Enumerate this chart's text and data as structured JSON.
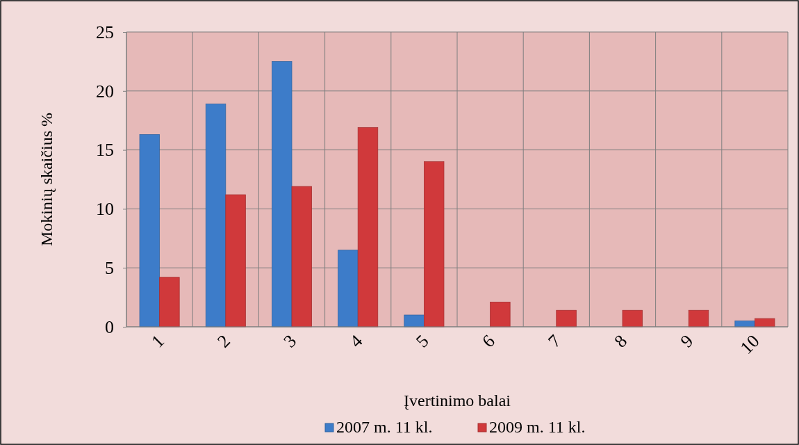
{
  "chart_data": {
    "type": "bar",
    "xlabel": "Įvertinimo balai",
    "ylabel": "Mokinių skaičius %",
    "categories": [
      "1",
      "2",
      "3",
      "4",
      "5",
      "6",
      "7",
      "8",
      "9",
      "10"
    ],
    "series": [
      {
        "name": "2007 m. 11 kl.",
        "color": "#3d7cc9",
        "values": [
          16.3,
          18.9,
          22.5,
          6.5,
          1.0,
          null,
          null,
          null,
          null,
          0.5
        ]
      },
      {
        "name": "2009 m. 11 kl.",
        "color": "#d0393b",
        "values": [
          4.2,
          11.2,
          11.9,
          16.9,
          14.0,
          2.1,
          1.4,
          1.4,
          1.4,
          0.7
        ]
      }
    ],
    "ylim": [
      0,
      25
    ],
    "yticks": [
      0,
      5,
      10,
      15,
      20,
      25
    ],
    "grid": true,
    "legend": "bottom"
  }
}
